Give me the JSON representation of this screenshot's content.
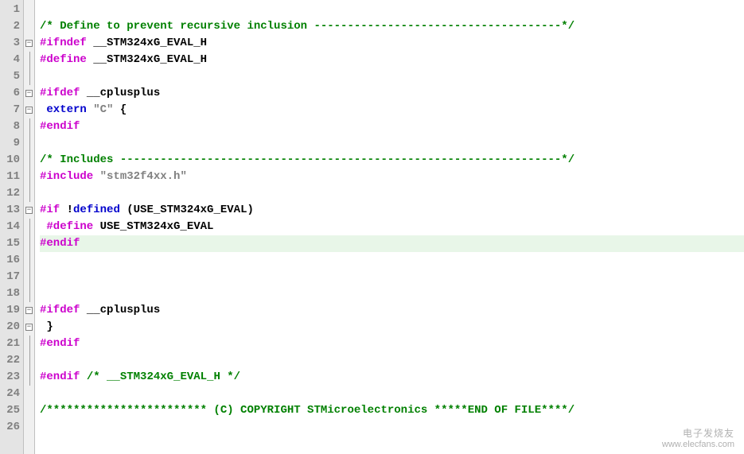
{
  "colors": {
    "comment": "#008000",
    "preprocessor": "#cc00cc",
    "keyword": "#0000cc",
    "string": "#808080",
    "plain": "#000000",
    "gutter_bg": "#e4e4e4",
    "gutter_fg": "#808080",
    "fold_bg": "#f0f0f0",
    "highlight_bg": "#e8f6e8"
  },
  "line_numbers": [
    "1",
    "2",
    "3",
    "4",
    "5",
    "6",
    "7",
    "8",
    "9",
    "10",
    "11",
    "12",
    "13",
    "14",
    "15",
    "16",
    "17",
    "18",
    "19",
    "20",
    "21",
    "22",
    "23",
    "24",
    "25",
    "26"
  ],
  "fold": [
    "",
    "",
    "box",
    "",
    "",
    "box",
    "box",
    "",
    "",
    "",
    "",
    "",
    "box",
    "",
    "",
    "",
    "",
    "",
    "box",
    "box",
    "",
    "",
    "",
    "",
    "",
    ""
  ],
  "lines": {
    "l1": "",
    "l2": "/* Define to prevent recursive inclusion -------------------------------------*/",
    "l3_a": "#ifndef",
    "l3_b": " __STM324xG_EVAL_H",
    "l4_a": "#define",
    "l4_b": " __STM324xG_EVAL_H",
    "l5": "",
    "l6_a": "#ifdef",
    "l6_b": " __cplusplus",
    "l7_a": " extern",
    "l7_b": " ",
    "l7_c": "\"C\"",
    "l7_d": " {",
    "l8": "#endif",
    "l9": "",
    "l10": "/* Includes ------------------------------------------------------------------*/",
    "l11_a": "#include",
    "l11_b": " ",
    "l11_c": "\"stm32f4xx.h\"",
    "l12": "",
    "l13_a": "#if",
    "l13_b": " !",
    "l13_c": "defined",
    "l13_d": " (USE_STM324xG_EVAL)",
    "l14_a": " #define",
    "l14_b": " USE_STM324xG_EVAL",
    "l15": "#endif",
    "l16": "",
    "l17": "",
    "l18": "",
    "l19_a": "#ifdef",
    "l19_b": " __cplusplus",
    "l20": " }",
    "l21": "#endif",
    "l22": "",
    "l23_a": "#endif",
    "l23_b": " ",
    "l23_c": "/* __STM324xG_EVAL_H */",
    "l24": "",
    "l25": "/************************ (C) COPYRIGHT STMicroelectronics *****END OF FILE****/",
    "l26": ""
  },
  "watermark": {
    "line1": "电子发烧友",
    "line2": "www.elecfans.com"
  }
}
